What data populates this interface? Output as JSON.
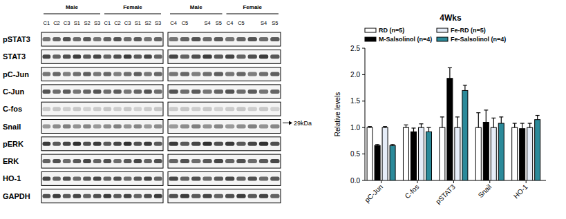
{
  "chart_data": {
    "type": "bar",
    "title": "4Wks",
    "y_label": "Relative levels",
    "categories": [
      "pC-Jun",
      "C-fos",
      "pSTAT3",
      "Snail",
      "HO-1"
    ],
    "series": [
      {
        "name": "RD (n=5)",
        "color": "#ffffff",
        "values": [
          1.0,
          1.0,
          1.0,
          1.0,
          1.0
        ],
        "errors": [
          0.02,
          0.05,
          0.2,
          0.28,
          0.08
        ]
      },
      {
        "name": "M-Salsolinol (n=4)",
        "color": "#000000",
        "values": [
          0.66,
          0.92,
          1.93,
          1.1,
          0.98
        ],
        "errors": [
          0.02,
          0.07,
          0.2,
          0.23,
          0.1
        ]
      },
      {
        "name": "Fe-RD (n=5)",
        "color": "#e6edf8",
        "values": [
          1.0,
          1.0,
          1.0,
          1.0,
          1.0
        ],
        "errors": [
          0.02,
          0.07,
          0.2,
          0.18,
          0.08
        ]
      },
      {
        "name": "Fe-Salsolinol (n=4)",
        "color": "#2b8a9a",
        "values": [
          0.66,
          0.92,
          1.7,
          1.08,
          1.15
        ],
        "errors": [
          0.02,
          0.08,
          0.1,
          0.12,
          0.08
        ]
      }
    ],
    "ylim": [
      0,
      2.5
    ],
    "yticks": [
      {
        "value": 0,
        "label": "0.0"
      },
      {
        "value": 0.5,
        "label": "0.5"
      },
      {
        "value": 1,
        "label": "1.0"
      },
      {
        "value": 1.5,
        "label": "1.5"
      },
      {
        "value": 2,
        "label": "2.0"
      },
      {
        "value": 2.5,
        "label": "2.5"
      }
    ],
    "grid": false,
    "legend": "top"
  },
  "blot": {
    "rows": [
      "pSTAT3",
      "STAT3",
      "pC-Jun",
      "C-Jun",
      "C-fos",
      "Snail",
      "pERK",
      "ERK",
      "HO-1",
      "GAPDH"
    ],
    "marker_label": "29kDa",
    "panels": [
      {
        "groups": [
          "Male",
          "Female"
        ],
        "lanes": [
          "C1",
          "C2",
          "C3",
          "S1",
          "S2",
          "S3"
        ]
      },
      {
        "groups": [
          "Male",
          "Female"
        ],
        "lanes": [
          "C4",
          "C5",
          null,
          "S4",
          "S5"
        ]
      }
    ]
  }
}
